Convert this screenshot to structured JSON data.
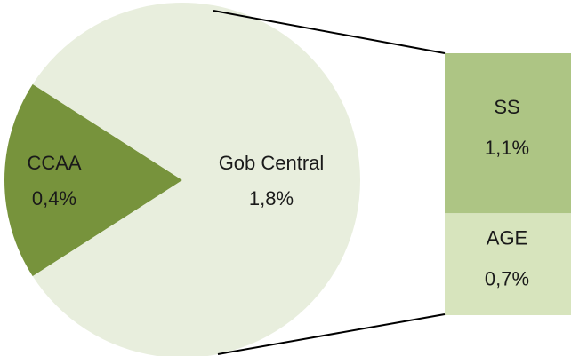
{
  "chart_data": [
    {
      "type": "pie",
      "categories": [
        "CCAA",
        "Gob Central"
      ],
      "values": [
        0.4,
        1.8
      ],
      "value_labels": [
        "0,4%",
        "1,8%"
      ],
      "colors": [
        "#77933c",
        "#e8eedd"
      ]
    },
    {
      "type": "bar",
      "categories": [
        "SS",
        "AGE"
      ],
      "values": [
        1.1,
        0.7
      ],
      "value_labels": [
        "1,1%",
        "0,7%"
      ],
      "colors": [
        "#adc584",
        "#d7e4bd"
      ]
    }
  ]
}
